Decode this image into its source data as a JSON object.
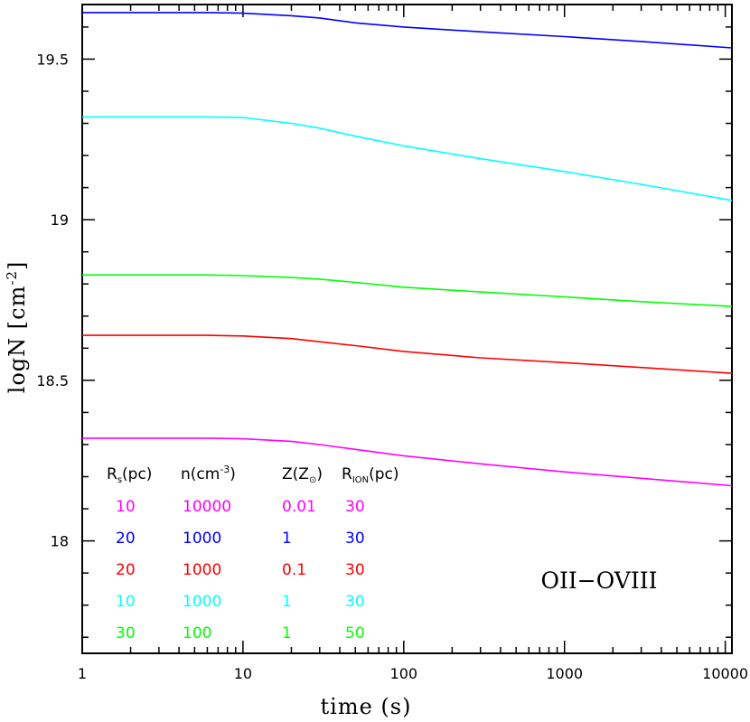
{
  "chart_data": {
    "type": "line",
    "title": "",
    "xlabel": "time  (s)",
    "ylabel_main": "logN  [cm",
    "ylabel_sup": "-2",
    "ylabel_close": "]",
    "xscale": "log",
    "xlim": [
      1,
      11000
    ],
    "ylim": [
      17.65,
      19.67
    ],
    "x_ticks": [
      {
        "value": 1,
        "label": "1"
      },
      {
        "value": 10,
        "label": "10"
      },
      {
        "value": 100,
        "label": "100"
      },
      {
        "value": 1000,
        "label": "1000"
      },
      {
        "value": 10000,
        "label": "10000"
      }
    ],
    "y_ticks": [
      {
        "value": 18,
        "label": "18"
      },
      {
        "value": 18.5,
        "label": "18.5"
      },
      {
        "value": 19,
        "label": "19"
      },
      {
        "value": 19.5,
        "label": "19.5"
      }
    ],
    "y_minor_step": 0.1,
    "annotation": "OII−OVIII",
    "series": [
      {
        "name": "Rs=20 n=1000 Z=1 RION=30",
        "color": "#0000ff",
        "x": [
          1,
          3,
          6,
          10,
          20,
          30,
          50,
          100,
          300,
          1000,
          3000,
          11000
        ],
        "y": [
          19.645,
          19.645,
          19.645,
          19.643,
          19.635,
          19.628,
          19.613,
          19.6,
          19.585,
          19.57,
          19.555,
          19.535
        ]
      },
      {
        "name": "Rs=10 n=1000 Z=1 RION=30",
        "color": "#00ffff",
        "x": [
          1,
          3,
          6,
          10,
          20,
          30,
          50,
          100,
          300,
          1000,
          3000,
          11000
        ],
        "y": [
          19.32,
          19.32,
          19.32,
          19.318,
          19.3,
          19.285,
          19.26,
          19.23,
          19.19,
          19.15,
          19.11,
          19.06
        ]
      },
      {
        "name": "Rs=30 n=100 Z=1 RION=50",
        "color": "#00ff00",
        "x": [
          1,
          3,
          6,
          10,
          20,
          30,
          50,
          100,
          300,
          1000,
          3000,
          11000
        ],
        "y": [
          18.828,
          18.828,
          18.828,
          18.826,
          18.82,
          18.815,
          18.805,
          18.79,
          18.775,
          18.76,
          18.745,
          18.73
        ]
      },
      {
        "name": "Rs=20 n=1000 Z=0.1 RION=30",
        "color": "#ff0000",
        "x": [
          1,
          3,
          6,
          10,
          20,
          30,
          50,
          100,
          300,
          1000,
          3000,
          11000
        ],
        "y": [
          18.64,
          18.64,
          18.64,
          18.638,
          18.63,
          18.62,
          18.608,
          18.59,
          18.57,
          18.555,
          18.54,
          18.522
        ]
      },
      {
        "name": "Rs=10 n=10000 Z=0.01 RION=30",
        "color": "#ff00ff",
        "x": [
          1,
          3,
          6,
          10,
          20,
          30,
          50,
          100,
          300,
          1000,
          3000,
          11000
        ],
        "y": [
          18.32,
          18.32,
          18.32,
          18.318,
          18.31,
          18.3,
          18.285,
          18.265,
          18.24,
          18.215,
          18.195,
          18.172
        ]
      }
    ],
    "legend": {
      "position": "bottom-left",
      "headers": [
        {
          "main": "R",
          "sub": "s",
          "rest": "(pc)"
        },
        {
          "main": "n(cm",
          "sup": "-3",
          "rest": ")"
        },
        {
          "main": "Z(Z",
          "sub": "⊙",
          "rest": ")"
        },
        {
          "main": "R",
          "sub": "ION",
          "rest": "(pc)"
        }
      ],
      "rows": [
        {
          "color": "#ff00ff",
          "cells": [
            "10",
            "10000",
            "0.01",
            "30"
          ]
        },
        {
          "color": "#0000ff",
          "cells": [
            "20",
            "1000",
            "1",
            "30"
          ]
        },
        {
          "color": "#ff0000",
          "cells": [
            "20",
            "1000",
            "0.1",
            "30"
          ]
        },
        {
          "color": "#00ffff",
          "cells": [
            "10",
            "1000",
            "1",
            "30"
          ]
        },
        {
          "color": "#00ff00",
          "cells": [
            "30",
            "100",
            "1",
            "50"
          ]
        }
      ]
    }
  }
}
